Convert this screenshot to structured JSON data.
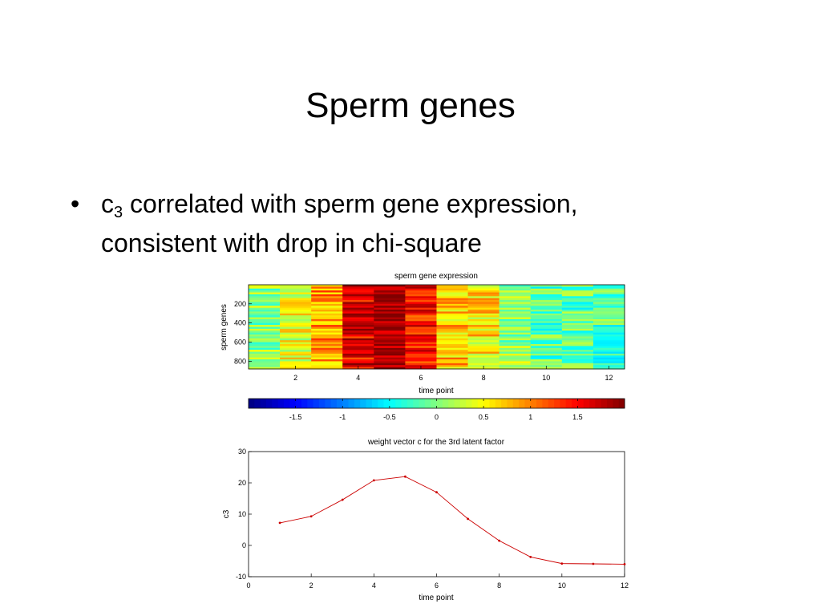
{
  "slide": {
    "title": "Sperm genes",
    "bullet_symbol": "•",
    "bullet_lead": "c",
    "bullet_subscript": "3",
    "bullet_line1_rest": " correlated with sperm gene expression,",
    "bullet_line2": "consistent with drop in chi-square"
  },
  "chart_data": [
    {
      "type": "heatmap",
      "title": "sperm gene expression",
      "xlabel": "time point",
      "ylabel": "sperm genes",
      "x_ticks": [
        2,
        4,
        6,
        8,
        10,
        12
      ],
      "y_ticks": [
        200,
        400,
        600,
        800
      ],
      "x_range": [
        0.5,
        12.5
      ],
      "y_range": [
        1,
        880
      ],
      "column_mean_values": [
        0.05,
        0.4,
        0.9,
        1.6,
        1.95,
        1.45,
        0.75,
        0.6,
        0.1,
        -0.15,
        -0.15,
        -0.2
      ],
      "colormap": "jet",
      "colorbar": {
        "range": [
          -2,
          2
        ],
        "ticks": [
          -1.5,
          -1,
          -0.5,
          0,
          0.5,
          1,
          1.5
        ],
        "tick_labels": [
          "-1.5",
          "-1",
          "-0.5",
          "0",
          "0.5",
          "1",
          "1.5"
        ]
      }
    },
    {
      "type": "line",
      "title": "weight vector c for the 3rd latent factor",
      "xlabel": "time point",
      "ylabel": "c3",
      "x": [
        1,
        2,
        3,
        4,
        5,
        6,
        7,
        8,
        9,
        10,
        11,
        12
      ],
      "y": [
        7.2,
        9.3,
        14.6,
        20.8,
        22.0,
        17.0,
        8.5,
        1.5,
        -3.7,
        -5.8,
        -5.9,
        -6.0
      ],
      "xlim": [
        0,
        12
      ],
      "ylim": [
        -10,
        30
      ],
      "x_ticks": [
        0,
        2,
        4,
        6,
        8,
        10,
        12
      ],
      "y_ticks": [
        -10,
        0,
        10,
        20,
        30
      ],
      "line_color": "#cc0000",
      "grid": false
    }
  ]
}
